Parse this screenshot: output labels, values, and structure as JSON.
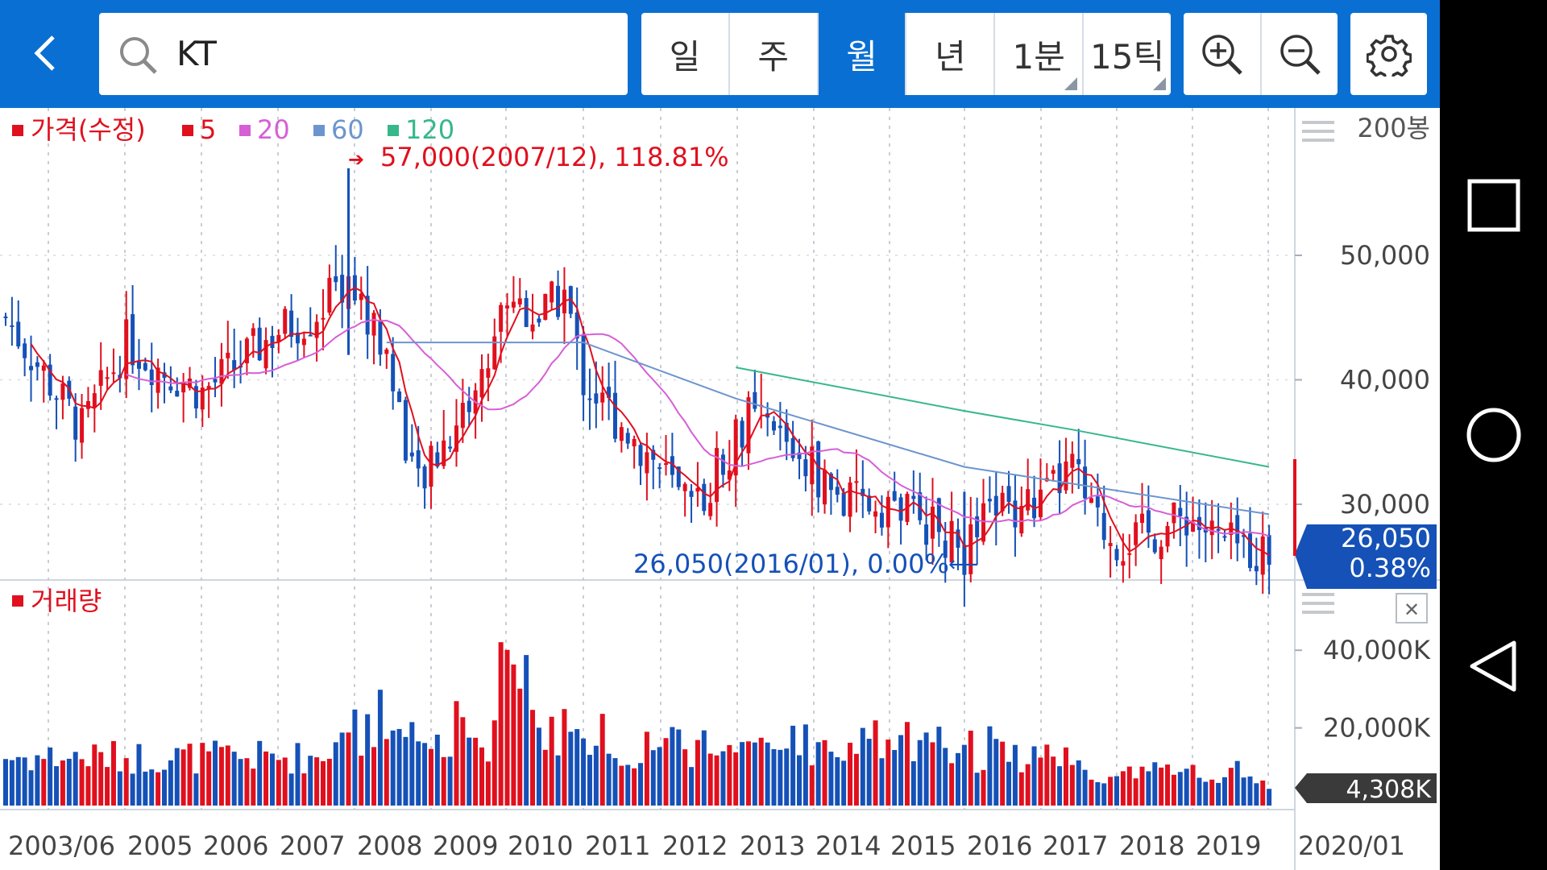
{
  "search": {
    "value": "KT"
  },
  "periods": [
    {
      "label": "일",
      "active": false,
      "corner": false
    },
    {
      "label": "주",
      "active": false,
      "corner": false
    },
    {
      "label": "월",
      "active": true,
      "corner": false
    },
    {
      "label": "년",
      "active": false,
      "corner": false
    },
    {
      "label": "1분",
      "active": false,
      "corner": true
    },
    {
      "label": "15틱",
      "active": false,
      "corner": true
    }
  ],
  "toolbar_icons": [
    "back-icon",
    "search-icon",
    "zoom-in-icon",
    "zoom-out-icon",
    "gear-icon"
  ],
  "nav_icons": [
    "recent-apps-icon",
    "home-icon",
    "back-triangle-icon"
  ],
  "colors": {
    "brand": "#0a6fd2",
    "up": "#e0101e",
    "down": "#1551b7",
    "ma5": "#e0101e",
    "ma20": "#d65fd6",
    "ma60": "#6c95cf",
    "ma120": "#37b78a"
  },
  "price_legend": {
    "title": "가격(수정)",
    "items": [
      {
        "label": "5",
        "color": "#e0101e"
      },
      {
        "label": "20",
        "color": "#d65fd6"
      },
      {
        "label": "60",
        "color": "#6c95cf"
      },
      {
        "label": "120",
        "color": "#37b78a"
      }
    ]
  },
  "volume_legend": {
    "title": "거래량"
  },
  "annotations": {
    "high": "57,000(2007/12), 118.81%",
    "low": "26,050(2016/01), 0.00%"
  },
  "bars_count_label": "200봉",
  "price_axis": {
    "ticks": [
      "50,000",
      "40,000",
      "30,000"
    ]
  },
  "current_price": {
    "value": "26,050",
    "change": "0.38%"
  },
  "volume_axis": {
    "ticks": [
      "40,000K",
      "20,000K"
    ]
  },
  "current_volume": "4,308K",
  "x_axis": {
    "labels": [
      "2003/06",
      "2005",
      "2006",
      "2007",
      "2008",
      "2009",
      "2010",
      "2011",
      "2012",
      "2013",
      "2014",
      "2015",
      "2016",
      "2017",
      "2018",
      "2019"
    ],
    "current": "2020/01"
  },
  "chart_data": {
    "type": "candlestick",
    "interval": "monthly",
    "symbol": "KT",
    "x_range": [
      "2003/06",
      "2020/01"
    ],
    "y_range": [
      26050,
      57000
    ],
    "high": {
      "value": 57000,
      "date": "2007/12",
      "pct": 118.81
    },
    "low": {
      "value": 26050,
      "date": "2016/01",
      "pct": 0.0
    },
    "close_points": [
      [
        "2003/06",
        45000
      ],
      [
        "2004/06",
        36000
      ],
      [
        "2005/01",
        43000
      ],
      [
        "2005/06",
        41000
      ],
      [
        "2006/01",
        39000
      ],
      [
        "2006/06",
        41000
      ],
      [
        "2007/01",
        44000
      ],
      [
        "2007/06",
        45000
      ],
      [
        "2007/12",
        48000
      ],
      [
        "2008/06",
        42000
      ],
      [
        "2008/11",
        31000
      ],
      [
        "2009/03",
        35000
      ],
      [
        "2009/09",
        40000
      ],
      [
        "2010/01",
        47000
      ],
      [
        "2010/06",
        45000
      ],
      [
        "2010/10",
        47000
      ],
      [
        "2011/01",
        40000
      ],
      [
        "2011/06",
        37000
      ],
      [
        "2012/01",
        33000
      ],
      [
        "2012/06",
        29000
      ],
      [
        "2012/10",
        33000
      ],
      [
        "2013/03",
        37000
      ],
      [
        "2013/09",
        35000
      ],
      [
        "2014/01",
        33000
      ],
      [
        "2014/06",
        30000
      ],
      [
        "2015/01",
        30000
      ],
      [
        "2015/06",
        29000
      ],
      [
        "2016/01",
        26050
      ],
      [
        "2016/06",
        30000
      ],
      [
        "2017/01",
        30000
      ],
      [
        "2017/06",
        33000
      ],
      [
        "2017/09",
        29000
      ],
      [
        "2018/01",
        27000
      ],
      [
        "2018/06",
        27500
      ],
      [
        "2018/12",
        29000
      ],
      [
        "2019/06",
        26800
      ],
      [
        "2020/01",
        26050
      ]
    ],
    "moving_averages": [
      {
        "name": "5",
        "color": "#e0101e"
      },
      {
        "name": "20",
        "color": "#d65fd6"
      },
      {
        "name": "60",
        "color": "#6c95cf",
        "points": [
          [
            "2008/06",
            43000
          ],
          [
            "2011/01",
            43000
          ],
          [
            "2013/01",
            38500
          ],
          [
            "2016/01",
            33000
          ],
          [
            "2020/01",
            29200
          ]
        ]
      },
      {
        "name": "120",
        "color": "#37b78a",
        "points": [
          [
            "2013/01",
            41000
          ],
          [
            "2016/01",
            37500
          ],
          [
            "2017/06",
            36000
          ],
          [
            "2020/01",
            33000
          ]
        ]
      }
    ],
    "volume": {
      "unit": "K",
      "axis_ticks": [
        20000,
        40000
      ],
      "current": 4308,
      "max_approx": 45000
    }
  }
}
